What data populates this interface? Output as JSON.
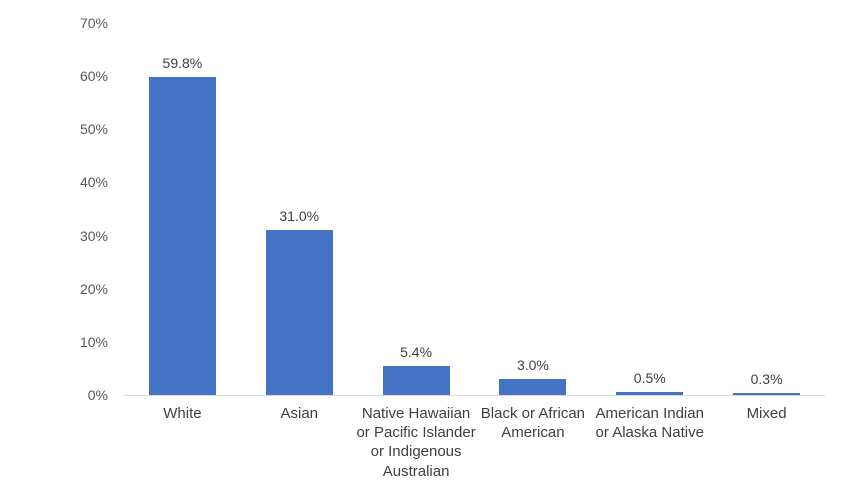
{
  "chart": {
    "background": "#ffffff"
  },
  "chart_data": {
    "type": "bar",
    "title": "",
    "xlabel": "",
    "ylabel": "",
    "categories": [
      "White",
      "Asian",
      "Native Hawaiian or Pacific Islander or Indigenous Australian",
      "Black or African American",
      "American Indian or Alaska Native",
      "Mixed"
    ],
    "category_labels_display": [
      "White",
      "Asian",
      "Native Hawaiian\nor Pacific Islander\nor Indigenous\nAustralian",
      "Black or African\nAmerican",
      "American Indian\nor Alaska Native",
      "Mixed"
    ],
    "values": [
      59.8,
      31.0,
      5.4,
      3.0,
      0.5,
      0.3
    ],
    "value_labels": [
      "59.8%",
      "31.0%",
      "5.4%",
      "3.0%",
      "0.5%",
      "0.3%"
    ],
    "ylim": [
      0,
      70
    ],
    "y_tick_interval": 10,
    "y_tick_labels": [
      "0%",
      "10%",
      "20%",
      "30%",
      "40%",
      "50%",
      "60%",
      "70%"
    ],
    "grid": false,
    "legend_position": "none",
    "bar_color": "#4472C4",
    "axis_line_color": "#D9D9D9",
    "tick_label_color": "#595959",
    "data_label_color": "#404040",
    "category_label_color": "#404040"
  }
}
